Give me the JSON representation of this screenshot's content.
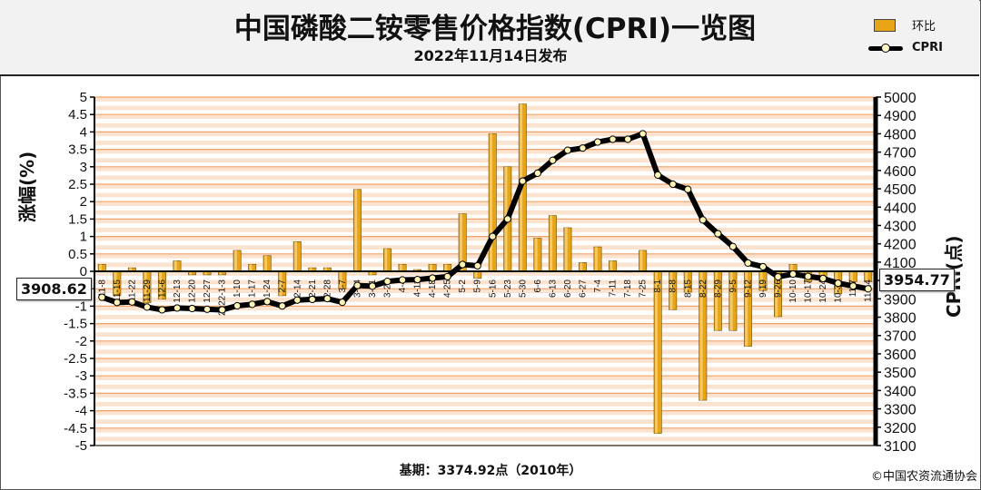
{
  "header": {
    "title": "中国磷酸二铵零售价格指数(CPRI)一览图",
    "subtitle": "2022年11月14日发布"
  },
  "legend": {
    "bar_label": "环比",
    "line_label": "CPRI"
  },
  "footer": {
    "base_text": "基期：3374.92点（2010年）",
    "copyright": "©中国农资流通协会"
  },
  "badges": {
    "left_value": "3908.62",
    "right_value": "3954.77"
  },
  "chart_data": {
    "type": "bar",
    "title": "中国磷酸二铵零售价格指数(CPRI)一览图",
    "ylabel_left": "涨幅(%)",
    "ylabel_right": "CPRI(点)",
    "ylim_left": [
      -5,
      5
    ],
    "ylim_right": [
      3100,
      5000
    ],
    "yticks_left": [
      "5",
      "4.5",
      "4",
      "3.5",
      "3",
      "2.5",
      "2",
      "1.5",
      "1",
      "0.5",
      "0",
      "-0.5",
      "-1",
      "-1.5",
      "-2",
      "-2.5",
      "-3",
      "-3.5",
      "-4",
      "-4.5",
      "-5"
    ],
    "yticks_right": [
      "5000",
      "4900",
      "4800",
      "4700",
      "4600",
      "4500",
      "4400",
      "4300",
      "4200",
      "4100",
      "4000",
      "3900",
      "3800",
      "3700",
      "3600",
      "3500",
      "3400",
      "3300",
      "3200",
      "3100"
    ],
    "x_labels": [
      "11-8",
      "11-15",
      "11-22",
      "11-29",
      "12-6",
      "12-13",
      "12-20",
      "12-27",
      "2022-1-3",
      "1-10",
      "1-17",
      "1-24",
      "2-7",
      "2-14",
      "2-21",
      "2-28",
      "3-7",
      "3-14",
      "3-21",
      "3-28",
      "4-4",
      "4-11",
      "4-18",
      "4-25",
      "5-2",
      "5-9",
      "5-16",
      "5-23",
      "5-30",
      "6-6",
      "6-13",
      "6-20",
      "6-27",
      "7-4",
      "7-11",
      "7-18",
      "7-25",
      "8-1",
      "8-8",
      "8-15",
      "8-22",
      "8-29",
      "9-5",
      "9-12",
      "9-19",
      "9-26",
      "10-10",
      "10-17",
      "10-24",
      "10-31",
      "11-7",
      "11-14"
    ],
    "series": [
      {
        "name": "环比",
        "values": [
          0.2,
          -0.7,
          0.1,
          -0.9,
          -0.8,
          0.3,
          -0.1,
          -0.1,
          -0.1,
          0.6,
          0.2,
          0.45,
          -0.7,
          0.85,
          0.1,
          0.1,
          -0.5,
          2.35,
          -0.1,
          0.65,
          0.2,
          0.05,
          0.2,
          0.2,
          1.65,
          -0.2,
          3.95,
          3.0,
          4.8,
          0.95,
          1.6,
          1.25,
          0.25,
          0.7,
          0.3,
          0.0,
          0.6,
          -4.65,
          -1.1,
          -0.6,
          -3.7,
          -1.7,
          -1.7,
          -2.15,
          -0.55,
          -1.3,
          0.2,
          -0.3,
          -0.3,
          -0.65,
          -0.3,
          -0.3
        ]
      },
      {
        "name": "CPRI",
        "values": [
          3908.62,
          3880,
          3883,
          3855,
          3840,
          3850,
          3847,
          3843,
          3840,
          3862,
          3870,
          3885,
          3861,
          3893,
          3897,
          3901,
          3881,
          3973,
          3969,
          3995,
          4003,
          4005,
          4013,
          4021,
          4087,
          4080,
          4240,
          4335,
          4542,
          4585,
          4655,
          4710,
          4722,
          4755,
          4770,
          4770,
          4800,
          4575,
          4525,
          4497,
          4330,
          4255,
          4185,
          4095,
          4075,
          4020,
          4035,
          4022,
          4011,
          3985,
          3970,
          3954.77
        ]
      }
    ],
    "grid": true
  }
}
